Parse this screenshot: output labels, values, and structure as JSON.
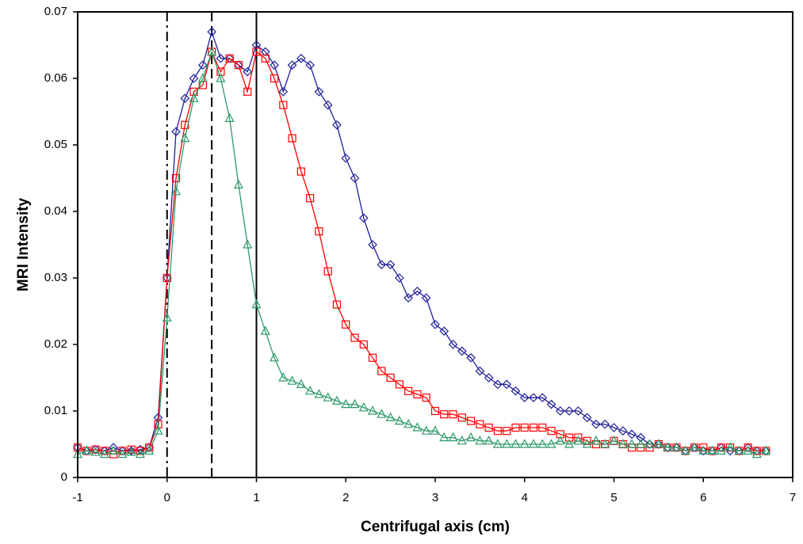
{
  "chart_data": {
    "type": "line",
    "xlabel": "Centrifugal axis (cm)",
    "ylabel": "MRI Intensity",
    "x": [
      -1,
      -0.9,
      -0.8,
      -0.7,
      -0.6,
      -0.5,
      -0.4,
      -0.3,
      -0.2,
      -0.1,
      0,
      0.1,
      0.2,
      0.3,
      0.4,
      0.5,
      0.6,
      0.7,
      0.8,
      0.9,
      1,
      1.1,
      1.2,
      1.3,
      1.4,
      1.5,
      1.6,
      1.7,
      1.8,
      1.9,
      2,
      2.1,
      2.2,
      2.3,
      2.4,
      2.5,
      2.6,
      2.7,
      2.8,
      2.9,
      3,
      3.1,
      3.2,
      3.3,
      3.4,
      3.5,
      3.6,
      3.7,
      3.8,
      3.9,
      4,
      4.1,
      4.2,
      4.3,
      4.4,
      4.5,
      4.6,
      4.7,
      4.8,
      4.9,
      5,
      5.1,
      5.2,
      5.3,
      5.4,
      5.5,
      5.6,
      5.7,
      5.8,
      5.9,
      6,
      6.1,
      6.2,
      6.3,
      6.4,
      6.5,
      6.6,
      6.7
    ],
    "series": [
      {
        "color": "#1f1f99",
        "marker": "diamond",
        "values": [
          0.0045,
          0.004,
          0.0042,
          0.004,
          0.0045,
          0.004,
          0.004,
          0.0042,
          0.0045,
          0.009,
          0.03,
          0.052,
          0.057,
          0.06,
          0.062,
          0.067,
          0.063,
          0.063,
          0.062,
          0.061,
          0.065,
          0.064,
          0.062,
          0.058,
          0.062,
          0.063,
          0.062,
          0.058,
          0.056,
          0.053,
          0.048,
          0.045,
          0.039,
          0.035,
          0.032,
          0.032,
          0.03,
          0.027,
          0.028,
          0.027,
          0.023,
          0.022,
          0.02,
          0.019,
          0.018,
          0.016,
          0.015,
          0.014,
          0.014,
          0.013,
          0.012,
          0.012,
          0.012,
          0.011,
          0.01,
          0.01,
          0.01,
          0.009,
          0.008,
          0.008,
          0.0075,
          0.007,
          0.0065,
          0.006,
          0.005,
          0.005,
          0.0045,
          0.0045,
          0.004,
          0.0045,
          0.004,
          0.004,
          0.0045,
          0.004,
          0.004,
          0.0045,
          0.004,
          0.004
        ]
      },
      {
        "color": "#ff0000",
        "marker": "square",
        "values": [
          0.0045,
          0.004,
          0.0042,
          0.004,
          0.0035,
          0.004,
          0.0042,
          0.004,
          0.0045,
          0.008,
          0.03,
          0.045,
          0.053,
          0.058,
          0.059,
          0.064,
          0.061,
          0.063,
          0.062,
          0.058,
          0.064,
          0.063,
          0.06,
          0.056,
          0.051,
          0.046,
          0.042,
          0.037,
          0.031,
          0.026,
          0.023,
          0.021,
          0.02,
          0.018,
          0.016,
          0.015,
          0.014,
          0.013,
          0.0125,
          0.012,
          0.01,
          0.0095,
          0.0095,
          0.009,
          0.0085,
          0.008,
          0.0075,
          0.007,
          0.007,
          0.0075,
          0.0075,
          0.0075,
          0.0075,
          0.007,
          0.0065,
          0.006,
          0.006,
          0.0055,
          0.005,
          0.005,
          0.0055,
          0.005,
          0.0045,
          0.0045,
          0.0045,
          0.005,
          0.0045,
          0.0045,
          0.004,
          0.0045,
          0.0045,
          0.004,
          0.0045,
          0.0045,
          0.004,
          0.0045,
          0.004,
          0.004
        ]
      },
      {
        "color": "#2e9a6a",
        "marker": "triangle",
        "values": [
          0.0035,
          0.004,
          0.0038,
          0.0035,
          0.004,
          0.0035,
          0.0038,
          0.0035,
          0.004,
          0.007,
          0.024,
          0.043,
          0.051,
          0.057,
          0.06,
          0.064,
          0.06,
          0.054,
          0.044,
          0.035,
          0.026,
          0.022,
          0.018,
          0.015,
          0.0145,
          0.014,
          0.013,
          0.0125,
          0.012,
          0.0115,
          0.011,
          0.011,
          0.0105,
          0.01,
          0.0095,
          0.009,
          0.0085,
          0.008,
          0.0075,
          0.007,
          0.007,
          0.006,
          0.006,
          0.0055,
          0.006,
          0.0055,
          0.0055,
          0.005,
          0.005,
          0.005,
          0.005,
          0.005,
          0.005,
          0.005,
          0.0055,
          0.005,
          0.0055,
          0.005,
          0.0055,
          0.005,
          0.0055,
          0.005,
          0.005,
          0.005,
          0.005,
          0.005,
          0.0045,
          0.0045,
          0.004,
          0.0045,
          0.004,
          0.004,
          0.004,
          0.0045,
          0.004,
          0.004,
          0.0035,
          0.004
        ]
      }
    ],
    "vlines": [
      {
        "x": 0,
        "style": "dashdot"
      },
      {
        "x": 0.5,
        "style": "dashed"
      },
      {
        "x": 1,
        "style": "solid"
      }
    ],
    "xlim": [
      -1,
      7
    ],
    "xticks": [
      -1,
      0,
      1,
      2,
      3,
      4,
      5,
      6,
      7
    ],
    "ylim": [
      0,
      0.07
    ],
    "yticks": [
      0,
      0.01,
      0.02,
      0.03,
      0.04,
      0.05,
      0.06,
      0.07
    ]
  }
}
